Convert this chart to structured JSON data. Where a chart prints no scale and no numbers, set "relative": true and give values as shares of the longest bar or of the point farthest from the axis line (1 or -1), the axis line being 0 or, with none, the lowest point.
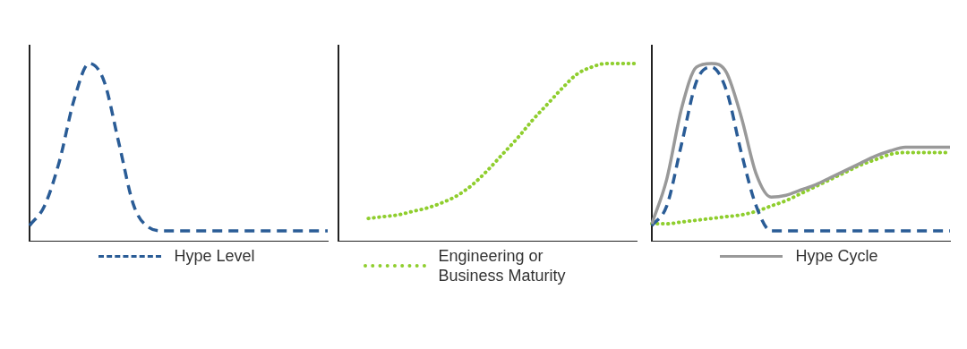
{
  "chart_data": [
    {
      "type": "line",
      "relative": true,
      "legend": "bottom",
      "marker": "none",
      "categories": [
        null,
        null,
        null,
        null,
        null,
        null,
        null,
        null,
        null,
        null,
        null,
        null,
        null,
        null,
        null,
        null,
        null,
        null,
        null,
        null,
        null
      ],
      "series": [
        {
          "name": "Hype Level",
          "color": "#2a5c96",
          "line_style": "dashed",
          "values": [
            0.09,
            0.2,
            0.45,
            0.8,
            1,
            0.9,
            0.55,
            0.2,
            0.08,
            0.06,
            0.06,
            0.06,
            0.06,
            0.06,
            0.06,
            0.06,
            0.06,
            0.06,
            0.06,
            0.06,
            0.06
          ]
        }
      ]
    },
    {
      "type": "line",
      "relative": true,
      "legend": "bottom",
      "marker": "none",
      "categories": [
        null,
        null,
        null,
        null,
        null,
        null,
        null,
        null,
        null,
        null,
        null,
        null,
        null,
        null,
        null,
        null,
        null,
        null,
        null,
        null,
        null
      ],
      "series": [
        {
          "name": "Engineering or Business Maturity",
          "color": "#8fce2e",
          "line_style": "dotted",
          "values": [
            null,
            null,
            0.13,
            0.14,
            0.15,
            0.17,
            0.19,
            0.22,
            0.26,
            0.32,
            0.4,
            0.49,
            0.58,
            0.68,
            0.77,
            0.86,
            0.94,
            0.98,
            1,
            1,
            1
          ]
        }
      ]
    },
    {
      "type": "line",
      "relative": true,
      "legend": "bottom",
      "marker": "none",
      "categories": [
        null,
        null,
        null,
        null,
        null,
        null,
        null,
        null,
        null,
        null,
        null,
        null,
        null,
        null,
        null,
        null,
        null,
        null,
        null,
        null,
        null
      ],
      "series": [
        {
          "name": "Hype Cycle",
          "color": "#999999",
          "line_style": "solid",
          "values": [
            0.1,
            0.35,
            0.75,
            0.98,
            1,
            0.95,
            0.7,
            0.38,
            0.25,
            0.26,
            0.29,
            0.32,
            0.36,
            0.4,
            0.44,
            0.48,
            0.51,
            0.53,
            0.53,
            0.53,
            0.53
          ]
        },
        {
          "color": "#2a5c96",
          "line_style": "dashed",
          "values": [
            0.09,
            0.2,
            0.55,
            0.9,
            0.98,
            0.85,
            0.5,
            0.2,
            0.06,
            0.06,
            0.06,
            0.06,
            0.06,
            0.06,
            0.06,
            0.06,
            0.06,
            0.06,
            0.06,
            0.06,
            0.06
          ]
        },
        {
          "color": "#8fce2e",
          "line_style": "dotted",
          "values": [
            0.1,
            0.1,
            0.11,
            0.12,
            0.13,
            0.14,
            0.15,
            0.17,
            0.2,
            0.23,
            0.27,
            0.31,
            0.35,
            0.39,
            0.43,
            0.46,
            0.49,
            0.5,
            0.5,
            0.5,
            0.5
          ]
        }
      ]
    }
  ]
}
